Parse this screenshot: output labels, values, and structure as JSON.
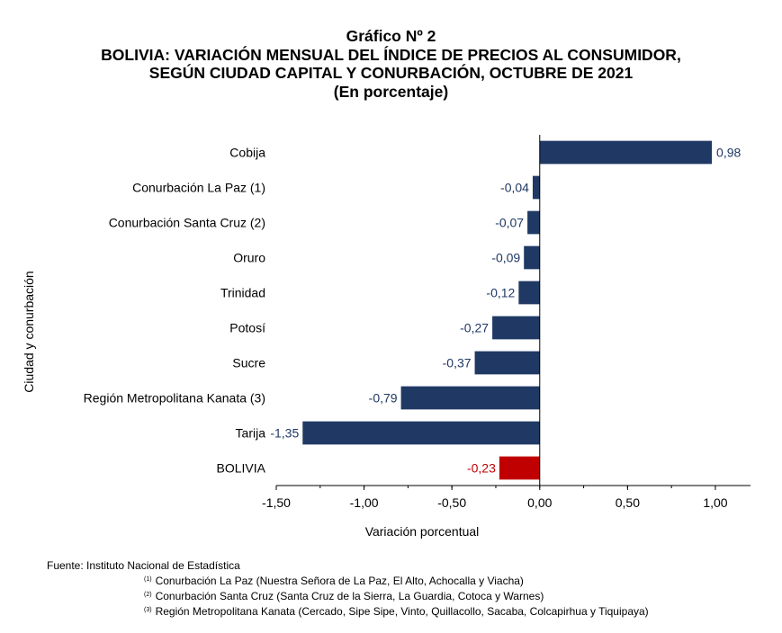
{
  "title_lines": [
    "Gráfico Nº 2",
    "BOLIVIA: VARIACIÓN MENSUAL DEL ÍNDICE DE PRECIOS AL CONSUMIDOR,",
    "SEGÚN CIUDAD CAPITAL Y CONURBACIÓN, OCTUBRE DE 2021",
    "(En porcentaje)"
  ],
  "chart_data": {
    "type": "bar",
    "orientation": "horizontal",
    "categories": [
      "Cobija",
      "Conurbación La Paz (1)",
      "Conurbación Santa Cruz (2)",
      "Oruro",
      "Trinidad",
      "Potosí",
      "Sucre",
      "Región Metropolitana Kanata (3)",
      "Tarija",
      "BOLIVIA"
    ],
    "values": [
      0.98,
      -0.04,
      -0.07,
      -0.09,
      -0.12,
      -0.27,
      -0.37,
      -0.79,
      -1.35,
      -0.23
    ],
    "value_labels": [
      "0,98",
      "-0,04",
      "-0,07",
      "-0,09",
      "-0,12",
      "-0,27",
      "-0,37",
      "-0,79",
      "-1,35",
      "-0,23"
    ],
    "xlabel": "Variación porcentual",
    "ylabel": "Ciudad y conurbación",
    "xlim": [
      -1.5,
      1.2
    ],
    "xticks": [
      -1.5,
      -1.0,
      -0.5,
      0.0,
      0.5,
      1.0
    ],
    "xtick_labels": [
      "-1,50",
      "-1,00",
      "-0,50",
      "0,00",
      "0,50",
      "1,00"
    ],
    "grid": false,
    "colors": {
      "bar": "#203864",
      "highlight": "#c00000",
      "label": "#1f3864",
      "highlight_label": "#c00000"
    },
    "highlight_category": "BOLIVIA"
  },
  "footnotes": {
    "source": "Fuente: Instituto Nacional de Estadística",
    "notes": [
      {
        "mark": "(1)",
        "text": "Conurbación La Paz (Nuestra Señora de La Paz, El Alto, Achocalla y Viacha)"
      },
      {
        "mark": "(2)",
        "text": "Conurbación Santa Cruz (Santa Cruz de la Sierra, La Guardia, Cotoca y Warnes)"
      },
      {
        "mark": "(3)",
        "text": "Región Metropolitana Kanata (Cercado, Sipe Sipe, Vinto, Quillacollo, Sacaba, Colcapirhua y Tiquipaya)"
      }
    ]
  }
}
